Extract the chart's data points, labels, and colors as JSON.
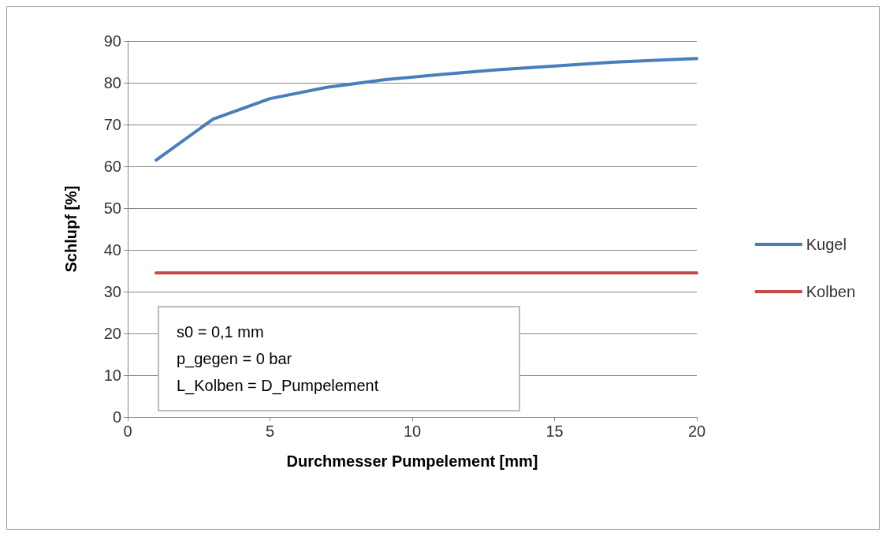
{
  "chart_data": {
    "type": "line",
    "xlabel": "Durchmesser Pumpelement [mm]",
    "ylabel": "Schlupf [%]",
    "xlim": [
      0,
      20
    ],
    "xticks": [
      0,
      5,
      10,
      15,
      20
    ],
    "ylim": [
      0,
      90
    ],
    "yticks": [
      0,
      10,
      20,
      30,
      40,
      50,
      60,
      70,
      80,
      90
    ],
    "grid": "y",
    "legend": "right",
    "marker": "none",
    "line_style": "solid",
    "annotations": [
      "s0 = 0,1 mm",
      "p_gegen = 0 bar",
      "L_Kolben = D_Pumpelement"
    ],
    "series": [
      {
        "name": "Kugel",
        "color": "#4a7ebb",
        "x": [
          1,
          3,
          5,
          7,
          9,
          11,
          13,
          15,
          17,
          19,
          20
        ],
        "values": [
          61.5,
          71.3,
          76.2,
          78.9,
          80.7,
          82,
          83.1,
          84,
          84.9,
          85.5,
          85.8
        ]
      },
      {
        "name": "Kolben",
        "color": "#be4b48",
        "x": [
          1,
          3,
          5,
          7,
          9,
          11,
          13,
          15,
          17,
          19,
          20
        ],
        "values": [
          34.5,
          34.5,
          34.5,
          34.5,
          34.5,
          34.5,
          34.5,
          34.5,
          34.5,
          34.5,
          34.5
        ]
      }
    ]
  }
}
